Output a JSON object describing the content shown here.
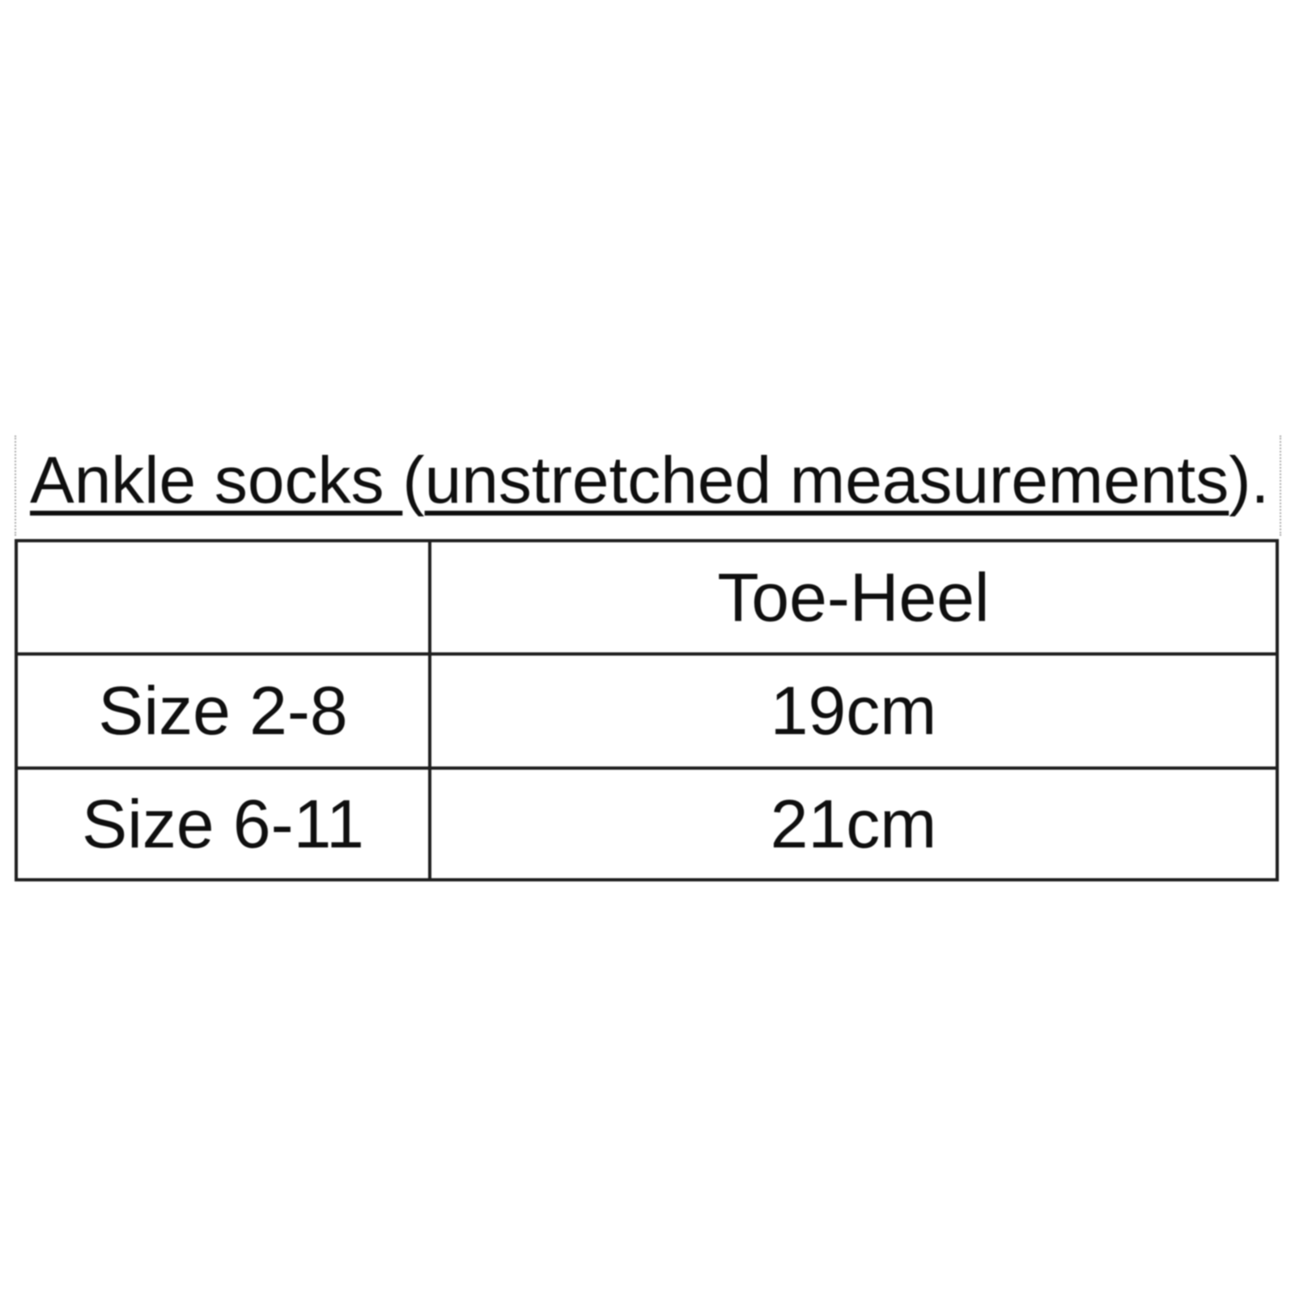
{
  "title": {
    "part1_underlined": "Ankle socks ",
    "paren_open": "(",
    "part2_underlined": "unstretched measurements",
    "suffix": ")."
  },
  "table": {
    "header": {
      "label_col": "",
      "toe_heel_col": "Toe-Heel"
    },
    "rows": [
      {
        "size": "Size 2-8",
        "toe_heel": "19cm"
      },
      {
        "size": "Size 6-11",
        "toe_heel": "21cm"
      }
    ]
  },
  "colors": {
    "text": "#0f0f0f",
    "table_border": "#1f1f1f",
    "guide_dotted": "#a8a8a8",
    "background": "#ffffff"
  }
}
